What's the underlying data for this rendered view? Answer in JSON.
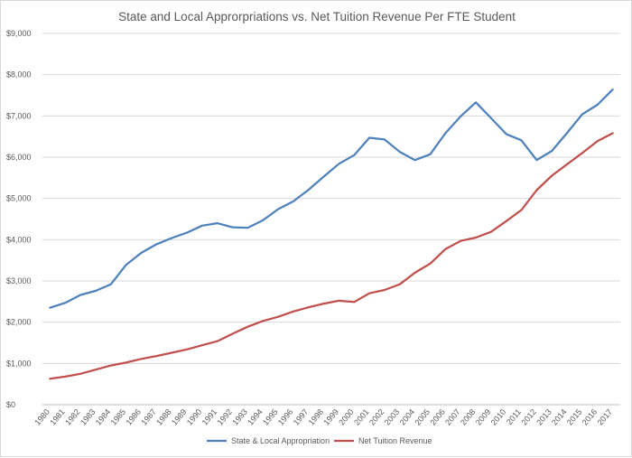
{
  "chart_data": {
    "type": "line",
    "title": "State and Local Approrpriations vs. Net Tuition Revenue Per FTE Student",
    "xlabel": "",
    "ylabel": "",
    "ylim": [
      0,
      9000
    ],
    "y_ticks": [
      0,
      1000,
      2000,
      3000,
      4000,
      5000,
      6000,
      7000,
      8000,
      9000
    ],
    "y_tick_labels": [
      "$0",
      "$1,000",
      "$2,000",
      "$3,000",
      "$4,000",
      "$5,000",
      "$6,000",
      "$7,000",
      "$8,000",
      "$9,000"
    ],
    "grid": true,
    "legend_position": "bottom-center",
    "categories": [
      "1980",
      "1981",
      "1982",
      "1983",
      "1984",
      "1985",
      "1986",
      "1987",
      "1988",
      "1989",
      "1990",
      "1991",
      "1992",
      "1993",
      "1994",
      "1995",
      "1996",
      "1997",
      "1998",
      "1999",
      "2000",
      "2001",
      "2002",
      "2003",
      "2004",
      "2005",
      "2006",
      "2007",
      "2008",
      "2009",
      "2010",
      "2011",
      "2012",
      "2013",
      "2014",
      "2015",
      "2016",
      "2017"
    ],
    "series": [
      {
        "name": "State & Local Appropriation",
        "color": "#4f81bd",
        "values": [
          2350,
          2470,
          2660,
          2760,
          2920,
          3390,
          3680,
          3890,
          4040,
          4170,
          4340,
          4400,
          4300,
          4290,
          4470,
          4740,
          4930,
          5210,
          5530,
          5840,
          6050,
          6470,
          6430,
          6130,
          5930,
          6070,
          6580,
          6990,
          7330,
          6950,
          6560,
          6410,
          5930,
          6150,
          6590,
          7040,
          7270,
          7640
        ]
      },
      {
        "name": "Net Tuition Revenue",
        "color": "#c0504d",
        "values": [
          630,
          680,
          750,
          850,
          950,
          1020,
          1110,
          1180,
          1260,
          1340,
          1440,
          1540,
          1720,
          1890,
          2030,
          2130,
          2260,
          2360,
          2450,
          2520,
          2490,
          2700,
          2780,
          2920,
          3200,
          3420,
          3770,
          3970,
          4050,
          4190,
          4450,
          4720,
          5200,
          5550,
          5830,
          6100,
          6390,
          6580
        ]
      }
    ]
  }
}
